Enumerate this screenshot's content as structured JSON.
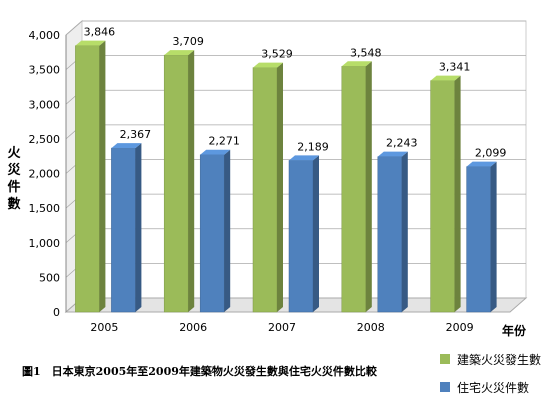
{
  "chart_data": {
    "type": "bar",
    "title": "",
    "xlabel": "年份",
    "ylabel": "火災件數",
    "ylim": [
      0,
      4000
    ],
    "yticks": [
      "0",
      "500",
      "1,000",
      "1,500",
      "2,000",
      "2,500",
      "3,000",
      "3,500",
      "4,000"
    ],
    "categories": [
      "2005",
      "2006",
      "2007",
      "2008",
      "2009"
    ],
    "series": [
      {
        "name": "建築火災發生數",
        "values": [
          3846,
          3709,
          3529,
          3548,
          3341
        ],
        "labels": [
          "3,846",
          "3,709",
          "3,529",
          "3,548",
          "3,341"
        ],
        "color": "#9BBB59"
      },
      {
        "name": "住宅火災件數",
        "values": [
          2367,
          2271,
          2189,
          2243,
          2099
        ],
        "labels": [
          "2,367",
          "2,271",
          "2,189",
          "2,243",
          "2,099"
        ],
        "color": "#4F81BD"
      }
    ],
    "grid": true,
    "legend": "bottom-right"
  },
  "caption": "圖1　日本東京2005年至2009年建築物火災發生數與住宅火災件數比較"
}
